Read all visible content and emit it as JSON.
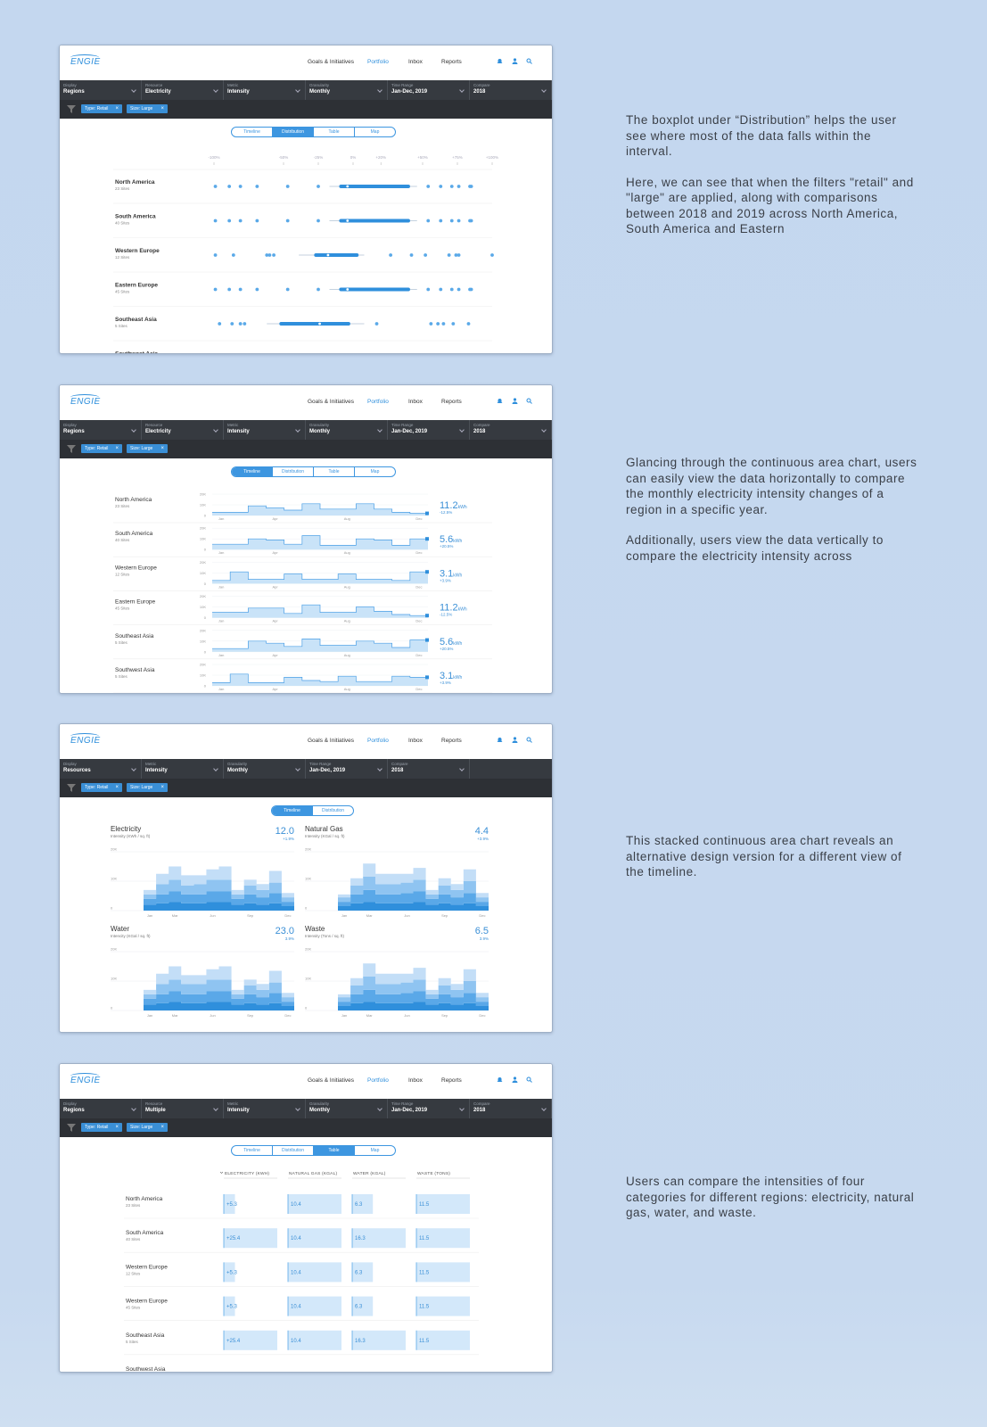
{
  "nav": {
    "logo": "ENGIE",
    "links": [
      "Goals & Initiatives",
      "Portfolio",
      "Inbox",
      "Reports"
    ],
    "active_link": 1
  },
  "panels": [
    {
      "filters": [
        {
          "label": "Display",
          "value": "Regions"
        },
        {
          "label": "Resource",
          "value": "Electricity"
        },
        {
          "label": "Metric",
          "value": "Intensity"
        },
        {
          "label": "Granularity",
          "value": "Monthly"
        },
        {
          "label": "Time Range",
          "value": "Jan-Dec, 2019"
        },
        {
          "label": "Compare",
          "value": "2018"
        }
      ],
      "chips": [
        "Type: Retail",
        "Size: Large"
      ],
      "tabs": [
        "Timeline",
        "Distribution",
        "Table",
        "Map"
      ],
      "active_tab": 1,
      "description": [
        "The boxplot under “Distribution” helps the user see where most of the data falls within the interval.",
        "Here, we can see that when the filters \"retail\" and \"large\" are applied, along with comparisons between 2018 and 2019 across North America, South America and Eastern"
      ],
      "chart_data": {
        "type": "boxplot",
        "xlim": [
          -100,
          100
        ],
        "xticks": [
          {
            "value": -100,
            "label": "-100%"
          },
          {
            "value": -50,
            "label": "-50%"
          },
          {
            "value": -25,
            "label": "-25%"
          },
          {
            "value": 0,
            "label": "0%"
          },
          {
            "value": 20,
            "label": "+20%"
          },
          {
            "value": 50,
            "label": "+50%"
          },
          {
            "value": 75,
            "label": "+75%"
          },
          {
            "value": 100,
            "label": "+100%"
          }
        ],
        "rows": [
          {
            "name": "North America",
            "sites": "23 Sites",
            "min": -17,
            "q1": -10,
            "median": -4,
            "q3": 41,
            "max": 46,
            "points": [
              -99,
              -89,
              -81,
              -69,
              -47,
              -25,
              54,
              63,
              71,
              76,
              84,
              85
            ]
          },
          {
            "name": "South America",
            "sites": "40 Sites",
            "min": -17,
            "q1": -10,
            "median": -4,
            "q3": 41,
            "max": 46,
            "points": [
              -99,
              -89,
              -81,
              -69,
              -47,
              -25,
              54,
              63,
              71,
              76,
              84,
              85
            ]
          },
          {
            "name": "Western Europe",
            "sites": "12 Sites",
            "min": -39,
            "q1": -28,
            "median": -18,
            "q3": 4,
            "max": 8,
            "points": [
              -99,
              -86,
              -62,
              -60,
              -57,
              27,
              42,
              52,
              69,
              74,
              76,
              100
            ]
          },
          {
            "name": "Eastern Europe",
            "sites": "45 Sites",
            "min": -17,
            "q1": -10,
            "median": -4,
            "q3": 41,
            "max": 46,
            "points": [
              -99,
              -89,
              -81,
              -69,
              -47,
              -25,
              54,
              63,
              71,
              76,
              84,
              85
            ]
          },
          {
            "name": "Southeast Asia",
            "sites": "5 Sites",
            "min": -62,
            "q1": -53,
            "median": -24,
            "q3": -2,
            "max": 8,
            "points": [
              -96,
              -87,
              -81,
              -78,
              17,
              56,
              61,
              65,
              72,
              83
            ]
          },
          {
            "name": "Southwest Asia"
          }
        ]
      }
    },
    {
      "filters": [
        {
          "label": "Display",
          "value": "Regions"
        },
        {
          "label": "Resource",
          "value": "Electricity"
        },
        {
          "label": "Metric",
          "value": "Intensity"
        },
        {
          "label": "Granularity",
          "value": "Monthly"
        },
        {
          "label": "Time Range",
          "value": "Jan-Dec, 2019"
        },
        {
          "label": "Compare",
          "value": "2018"
        }
      ],
      "chips": [
        "Type: Retail",
        "Size: Large"
      ],
      "tabs": [
        "Timeline",
        "Distribution",
        "Table",
        "Map"
      ],
      "active_tab": 0,
      "description": [
        "Glancing through the continuous area chart, users can easily view the data horizontally to compare the monthly electricity intensity changes of a region in a specific year.",
        "Additionally,  users view the data vertically to compare the electricity intensity across"
      ],
      "chart_data": {
        "type": "sparkline-area",
        "ylim": [
          0,
          20000
        ],
        "yticks": [
          {
            "value": 20000,
            "label": "20K"
          },
          {
            "value": 10000,
            "label": "10K"
          },
          0
        ],
        "categories": [
          "Jan",
          null,
          null,
          "Apr",
          null,
          null,
          null,
          "Aug",
          null,
          null,
          null,
          "Dec"
        ],
        "unit": "kWh",
        "color": "#4a9fe6",
        "fill": "#c9e3f8",
        "rows": [
          {
            "name": "North America",
            "sites": "23 Sites",
            "total": 11.2,
            "change": "-12.5%",
            "values": [
              3000,
              3000,
              9000,
              7000,
              5000,
              11000,
              6000,
              6000,
              11000,
              6000,
              3000,
              2000
            ]
          },
          {
            "name": "South America",
            "sites": "40 Sites",
            "total": 5.6,
            "change": "+20.5%",
            "values": [
              5000,
              5000,
              10000,
              9000,
              5000,
              13000,
              4000,
              4000,
              10000,
              9000,
              4000,
              10000
            ]
          },
          {
            "name": "Western Europe",
            "sites": "12 Sites",
            "total": 3.1,
            "change": "+3.9%",
            "values": [
              3000,
              11000,
              4000,
              4000,
              9000,
              4000,
              4000,
              9000,
              4000,
              4000,
              3000,
              11000
            ]
          },
          {
            "name": "Eastern Europe",
            "sites": "45 Sites",
            "total": 11.2,
            "change": "-12.5%",
            "values": [
              5000,
              5000,
              9000,
              9000,
              4000,
              12000,
              5000,
              5000,
              10000,
              6000,
              3000,
              2000
            ]
          },
          {
            "name": "Southeast Asia",
            "sites": "5 Sites",
            "total": 5.6,
            "change": "+20.5%",
            "values": [
              3000,
              3000,
              10000,
              8000,
              5000,
              12000,
              6000,
              6000,
              10000,
              8000,
              4000,
              11000
            ]
          },
          {
            "name": "Southwest Asia",
            "sites": "5 Sites",
            "total": 3.1,
            "change": "+3.9%",
            "values": [
              3000,
              11000,
              3000,
              3000,
              8000,
              5000,
              4000,
              9000,
              4000,
              4000,
              9000,
              8000
            ]
          }
        ]
      }
    },
    {
      "filters": [
        {
          "label": "Display",
          "value": "Resources"
        },
        {
          "label": "Metric",
          "value": "Intensity"
        },
        {
          "label": "Granularity",
          "value": "Monthly"
        },
        {
          "label": "Time Range",
          "value": "Jan-Dec, 2019"
        },
        {
          "label": "Compare",
          "value": "2018"
        }
      ],
      "chips": [
        "Type: Retail",
        "Size: Large"
      ],
      "tabs": [
        "Timeline",
        "Distribution"
      ],
      "active_tab": 0,
      "description": [
        "This stacked continuous area chart reveals an alternative design version for a different view of the timeline."
      ],
      "chart_data": {
        "type": "stacked-area",
        "ylim": [
          0,
          20000
        ],
        "yticks": [
          {
            "value": 20000,
            "label": "20K"
          },
          {
            "value": 10000,
            "label": "10K"
          },
          0
        ],
        "categories": [
          "Jan",
          null,
          "Mar",
          null,
          null,
          "Jun",
          null,
          null,
          "Sep",
          null,
          null,
          "Dec"
        ],
        "charts": [
          {
            "title": "Electricity",
            "subtitle": "Intensity (KWh / sq. ft)",
            "value": "12.0",
            "change": "+1.9%",
            "series": [
              {
                "color": "#2f8fdc",
                "values": [
                  2000,
                  2500,
                  3000,
                  2500,
                  2500,
                  3000,
                  3000,
                  2000,
                  2500,
                  2000,
                  2500,
                  1500
                ]
              },
              {
                "color": "#5aa8e8",
                "values": [
                  2000,
                  3000,
                  3500,
                  3000,
                  3000,
                  3500,
                  3500,
                  2000,
                  3000,
                  2500,
                  3500,
                  1500
                ]
              },
              {
                "color": "#8fc4f1",
                "values": [
                  1500,
                  3500,
                  4000,
                  3000,
                  3500,
                  4000,
                  4000,
                  1500,
                  3000,
                  2500,
                  3500,
                  1500
                ]
              },
              {
                "color": "#c3def7",
                "values": [
                  1500,
                  3500,
                  4500,
                  3500,
                  3000,
                  3500,
                  4500,
                  1500,
                  2000,
                  2000,
                  4000,
                  1500
                ]
              }
            ]
          },
          {
            "title": "Natural Gas",
            "subtitle": "Intensity (KGal / sq. ft)",
            "value": "4.4",
            "change": "+3.9%",
            "series": [
              {
                "color": "#2f8fdc",
                "values": [
                  1500,
                  2500,
                  3000,
                  2500,
                  2500,
                  2500,
                  3000,
                  2000,
                  2500,
                  2000,
                  2500,
                  1500
                ]
              },
              {
                "color": "#5aa8e8",
                "values": [
                  1500,
                  3000,
                  4000,
                  3000,
                  3000,
                  3500,
                  3500,
                  2000,
                  3000,
                  2500,
                  3500,
                  1500
                ]
              },
              {
                "color": "#8fc4f1",
                "values": [
                  1500,
                  3000,
                  4500,
                  3500,
                  3500,
                  3500,
                  4000,
                  1500,
                  3000,
                  2500,
                  4000,
                  1500
                ]
              },
              {
                "color": "#c3def7",
                "values": [
                  1000,
                  2500,
                  4500,
                  3500,
                  3500,
                  3000,
                  4000,
                  1500,
                  2500,
                  2000,
                  4000,
                  1500
                ]
              }
            ]
          },
          {
            "title": "Water",
            "subtitle": "Intencity (KGal / sq. ft)",
            "value": "23.0",
            "change": "3.9%",
            "series": [
              {
                "color": "#2f8fdc",
                "values": [
                  2000,
                  2500,
                  3000,
                  2500,
                  2500,
                  3000,
                  3000,
                  2000,
                  2500,
                  2000,
                  2500,
                  1500
                ]
              },
              {
                "color": "#5aa8e8",
                "values": [
                  2000,
                  3000,
                  3500,
                  3000,
                  3000,
                  3500,
                  3500,
                  2000,
                  3000,
                  2500,
                  3500,
                  1500
                ]
              },
              {
                "color": "#8fc4f1",
                "values": [
                  1500,
                  3500,
                  4000,
                  3500,
                  3500,
                  4000,
                  4000,
                  1500,
                  3000,
                  2500,
                  3500,
                  1500
                ]
              },
              {
                "color": "#c3def7",
                "values": [
                  1500,
                  3500,
                  4500,
                  3000,
                  3000,
                  3500,
                  4500,
                  1500,
                  2000,
                  2000,
                  4000,
                  1500
                ]
              }
            ]
          },
          {
            "title": "Waste",
            "subtitle": "Intensity (Tons / sq. ft)",
            "value": "6.5",
            "change": "3.9%",
            "series": [
              {
                "color": "#2f8fdc",
                "values": [
                  1500,
                  2500,
                  3000,
                  2500,
                  2500,
                  2500,
                  3000,
                  2000,
                  2500,
                  2000,
                  2500,
                  1500
                ]
              },
              {
                "color": "#5aa8e8",
                "values": [
                  1500,
                  3000,
                  4000,
                  3000,
                  3000,
                  3500,
                  3500,
                  2000,
                  3000,
                  2500,
                  3500,
                  1500
                ]
              },
              {
                "color": "#8fc4f1",
                "values": [
                  1500,
                  3000,
                  4500,
                  3500,
                  3500,
                  3500,
                  4000,
                  1500,
                  3000,
                  2500,
                  4000,
                  1500
                ]
              },
              {
                "color": "#c3def7",
                "values": [
                  1000,
                  2500,
                  4500,
                  3500,
                  3500,
                  3000,
                  4000,
                  1500,
                  2500,
                  2000,
                  4000,
                  1500
                ]
              }
            ]
          }
        ]
      }
    },
    {
      "filters": [
        {
          "label": "Display",
          "value": "Regions"
        },
        {
          "label": "Resource",
          "value": "Multiple"
        },
        {
          "label": "Metric",
          "value": "Intensity"
        },
        {
          "label": "Granularity",
          "value": "Monthly"
        },
        {
          "label": "Time Range",
          "value": "Jan-Dec, 2019"
        },
        {
          "label": "Compare",
          "value": "2018"
        }
      ],
      "chips": [
        "Type: Retail",
        "Size: Large"
      ],
      "tabs": [
        "Timeline",
        "Distribution",
        "Table",
        "Map"
      ],
      "active_tab": 2,
      "description": [
        "Users can compare the intensities of four categories for different regions: electricity, natural gas, water, and waste."
      ],
      "chart_data": {
        "type": "table",
        "columns": [
          "ELECTRICITY (KWH)",
          "NATURAL GAS (KGAL)",
          "WATER (KGAL)",
          "WASTE (TONS)"
        ],
        "rows": [
          {
            "name": "North America",
            "sites": "23 Sites",
            "cells": [
              {
                "value": 5.3,
                "label": "+5.3"
              },
              10.4,
              6.3,
              11.5
            ]
          },
          {
            "name": "South America",
            "sites": "40 Sites",
            "cells": [
              {
                "value": 25.4,
                "label": "+25.4"
              },
              10.4,
              16.3,
              11.5
            ]
          },
          {
            "name": "Western Europe",
            "sites": "12 Sites",
            "cells": [
              {
                "value": 5.3,
                "label": "+5.3"
              },
              10.4,
              6.3,
              11.5
            ]
          },
          {
            "name": "Western Europe",
            "sites": "45 Sites",
            "cells": [
              {
                "value": 5.3,
                "label": "+5.3"
              },
              10.4,
              6.3,
              11.5
            ]
          },
          {
            "name": "Southeast Asia",
            "sites": "5 Sites",
            "cells": [
              {
                "value": 25.4,
                "label": "+25.4"
              },
              10.4,
              16.3,
              11.5
            ]
          },
          {
            "name": "Southwest Asia"
          }
        ]
      }
    }
  ]
}
